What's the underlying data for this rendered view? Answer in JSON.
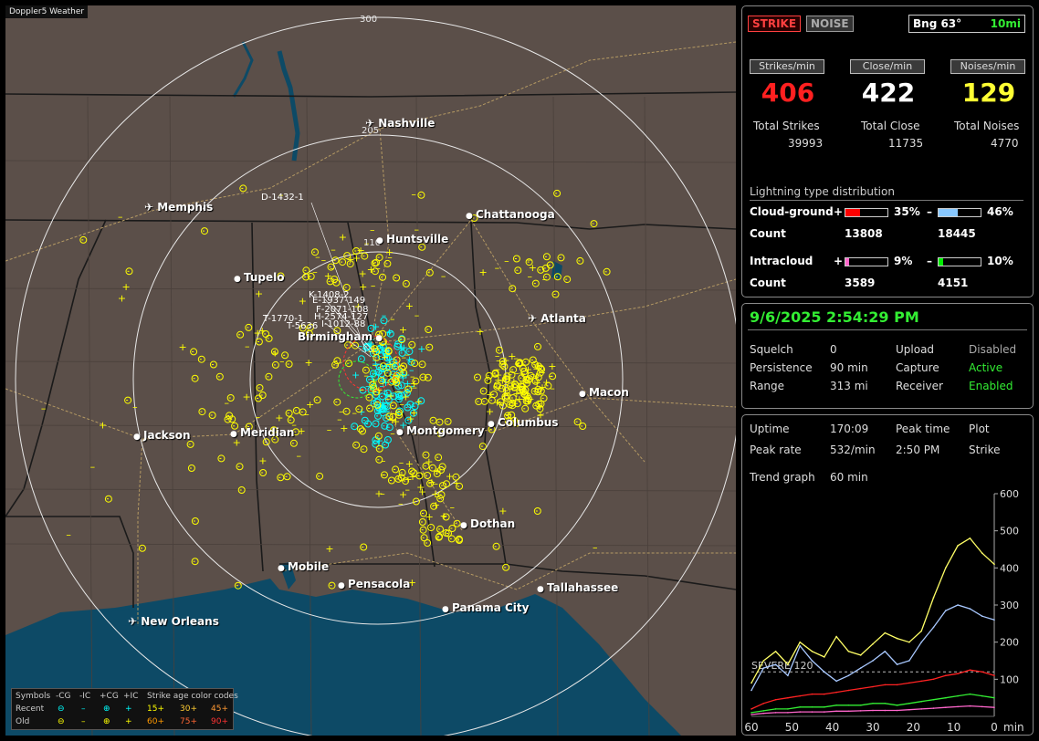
{
  "app_title": "Doppler5 Weather",
  "map": {
    "ring_labels": [
      "300",
      "205",
      "110"
    ],
    "cities": [
      {
        "name": "Nashville",
        "type": "airport"
      },
      {
        "name": "Memphis",
        "type": "airport"
      },
      {
        "name": "Chattanooga",
        "type": "dot"
      },
      {
        "name": "Huntsville",
        "type": "dot"
      },
      {
        "name": "Tupelo",
        "type": "dot"
      },
      {
        "name": "Atlanta",
        "type": "airport"
      },
      {
        "name": "Birmingham",
        "type": "dot"
      },
      {
        "name": "Macon",
        "type": "dot"
      },
      {
        "name": "Columbus",
        "type": "dot"
      },
      {
        "name": "Jackson",
        "type": "dot"
      },
      {
        "name": "Meridian",
        "type": "dot"
      },
      {
        "name": "Montgomery",
        "type": "dot"
      },
      {
        "name": "Dothan",
        "type": "dot"
      },
      {
        "name": "Mobile",
        "type": "dot"
      },
      {
        "name": "Pensacola",
        "type": "dot"
      },
      {
        "name": "Tallahassee",
        "type": "dot"
      },
      {
        "name": "Panama City",
        "type": "dot"
      },
      {
        "name": "New Orleans",
        "type": "airport"
      }
    ],
    "cluster_labels": [
      "D-1432-1",
      "K-1408-2",
      "E-1937-149",
      "F-2071-108",
      "H-2574-127",
      "T-1770-1",
      "I-1012-88",
      "T-5636"
    ],
    "colors": {
      "land": "#5b4f49",
      "water": "#0d4a66",
      "ring": "#e8e8e8",
      "strike_old": "#ffff00",
      "strike_recent": "#00ffff",
      "highway": "#b59a63",
      "border": "#1a1a1a"
    }
  },
  "legend": {
    "symbols_label": "Symbols",
    "headers": [
      "-CG",
      "-IC",
      "+CG",
      "+IC"
    ],
    "age_title": "Strike age color codes",
    "recent_label": "Recent",
    "old_label": "Old",
    "recent_ages": [
      "15+",
      "30+",
      "45+"
    ],
    "old_ages": [
      "60+",
      "75+",
      "90+"
    ],
    "recent_age_colors": [
      "#ffff00",
      "#ffcc33",
      "#ff9933"
    ],
    "old_age_colors": [
      "#ff9900",
      "#ff6633",
      "#ff3333"
    ]
  },
  "status": {
    "strike_tag": "STRIKE",
    "noise_tag": "NOISE",
    "bearing": "Bng 63°",
    "range_setting": "10mi"
  },
  "rates": {
    "strikes_label": "Strikes/min",
    "close_label": "Close/min",
    "noises_label": "Noises/min",
    "strikes_value": "406",
    "close_value": "422",
    "noises_value": "129",
    "total_strikes_label": "Total Strikes",
    "total_close_label": "Total Close",
    "total_noises_label": "Total Noises",
    "total_strikes": "39993",
    "total_close": "11735",
    "total_noises": "4770"
  },
  "distribution": {
    "title": "Lightning type distribution",
    "cg_label": "Cloud-ground",
    "ic_label": "Intracloud",
    "count_label": "Count",
    "plus_sign": "+",
    "minus_sign": "–",
    "cg_pos_pct": "35%",
    "cg_neg_pct": "46%",
    "cg_pos_count": "13808",
    "cg_neg_count": "18445",
    "ic_pos_pct": "9%",
    "ic_neg_pct": "10%",
    "ic_pos_count": "3589",
    "ic_neg_count": "4151",
    "cg_pos_fill": 0.35,
    "cg_neg_fill": 0.46,
    "ic_pos_fill": 0.09,
    "ic_neg_fill": 0.1,
    "cg_pos_color": "#ff0000",
    "cg_neg_color": "#88c8ff",
    "ic_pos_color": "#ff66cc",
    "ic_neg_color": "#00ee00"
  },
  "settings": {
    "datetime": "9/6/2025 2:54:29 PM",
    "squelch_label": "Squelch",
    "squelch_value": "0",
    "persistence_label": "Persistence",
    "persistence_value": "90 min",
    "range_label": "Range",
    "range_value": "313 mi",
    "upload_label": "Upload",
    "upload_value": "Disabled",
    "capture_label": "Capture",
    "capture_value": "Active",
    "receiver_label": "Receiver",
    "receiver_value": "Enabled"
  },
  "stats": {
    "uptime_label": "Uptime",
    "uptime_value": "170:09",
    "peak_time_label": "Peak time",
    "plot_label": "Plot",
    "peak_rate_label": "Peak rate",
    "peak_rate_value": "532/min",
    "peak_time_value": "2:50 PM",
    "plot_value": "Strike",
    "trend_label": "Trend graph",
    "trend_value": "60 min"
  },
  "chart_data": {
    "type": "line",
    "x": [
      60,
      57,
      54,
      51,
      48,
      45,
      42,
      39,
      36,
      33,
      30,
      27,
      24,
      21,
      18,
      15,
      12,
      9,
      6,
      3,
      0
    ],
    "xlabel": "min",
    "x_ticks": [
      "60",
      "50",
      "40",
      "30",
      "20",
      "10",
      "0"
    ],
    "y_ticks": [
      "600",
      "500",
      "400",
      "300",
      "200",
      "100"
    ],
    "ylim": [
      0,
      600
    ],
    "threshold": {
      "label": "SEVERE 120",
      "value": 120
    },
    "series": [
      {
        "color": "#ffff66",
        "values": [
          90,
          150,
          175,
          140,
          200,
          175,
          160,
          215,
          175,
          165,
          195,
          225,
          210,
          200,
          230,
          320,
          400,
          460,
          480,
          440,
          410
        ]
      },
      {
        "color": "#a8c8ff",
        "values": [
          70,
          130,
          140,
          110,
          190,
          150,
          120,
          95,
          110,
          130,
          150,
          175,
          140,
          150,
          200,
          240,
          285,
          300,
          290,
          270,
          260
        ]
      },
      {
        "color": "#ff2222",
        "values": [
          20,
          35,
          45,
          50,
          55,
          60,
          60,
          65,
          70,
          75,
          80,
          85,
          85,
          90,
          95,
          100,
          110,
          115,
          125,
          120,
          110
        ]
      },
      {
        "color": "#33ee33",
        "values": [
          10,
          15,
          20,
          20,
          25,
          25,
          25,
          30,
          30,
          30,
          35,
          35,
          30,
          35,
          40,
          45,
          50,
          55,
          60,
          55,
          50
        ]
      },
      {
        "color": "#ff66cc",
        "values": [
          5,
          8,
          10,
          10,
          12,
          12,
          12,
          14,
          14,
          15,
          16,
          16,
          16,
          18,
          20,
          22,
          24,
          26,
          28,
          26,
          24
        ]
      }
    ]
  }
}
